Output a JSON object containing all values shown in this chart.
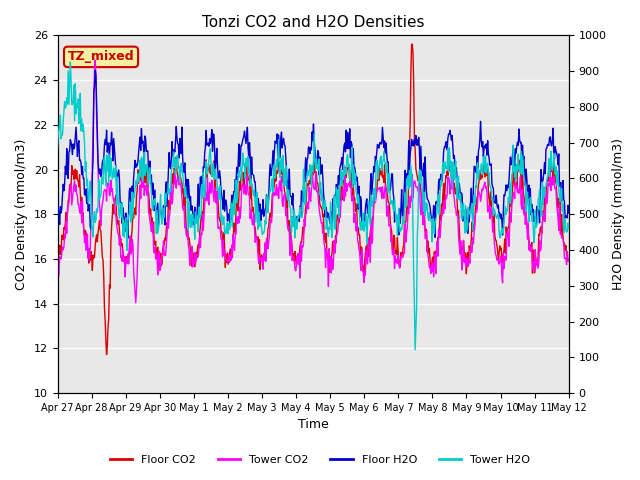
{
  "title": "Tonzi CO2 and H2O Densities",
  "xlabel": "Time",
  "ylabel_left": "CO2 Density (mmol/m3)",
  "ylabel_right": "H2O Density (mmol/m3)",
  "ylim_left": [
    10,
    26
  ],
  "ylim_right": [
    0,
    1000
  ],
  "yticks_left": [
    10,
    12,
    14,
    16,
    18,
    20,
    22,
    24,
    26
  ],
  "yticks_right": [
    0,
    100,
    200,
    300,
    400,
    500,
    600,
    700,
    800,
    900,
    1000
  ],
  "xtick_labels": [
    "Apr 27",
    "Apr 28",
    "Apr 29",
    "Apr 30",
    "May 1",
    "May 2",
    "May 3",
    "May 4",
    "May 5",
    "May 6",
    "May 7",
    "May 8",
    "May 9",
    "May 10",
    "May 11",
    "May 12"
  ],
  "n_days": 15,
  "pts_per_day": 48,
  "annotation_text": "TZ_mixed",
  "annotation_bg": "#f5f0a0",
  "annotation_edge": "#cc0000",
  "annotation_color": "#cc0000",
  "colors": {
    "floor_co2": "#dd0000",
    "tower_co2": "#ff00ff",
    "floor_h2o": "#0000cc",
    "tower_h2o": "#00cccc"
  },
  "legend_labels": [
    "Floor CO2",
    "Tower CO2",
    "Floor H2O",
    "Tower H2O"
  ],
  "plot_bg": "#e8e8e8",
  "linewidth": 1.0
}
